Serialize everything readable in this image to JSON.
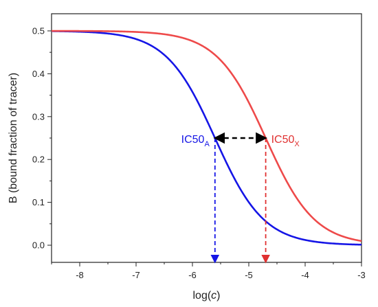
{
  "chart_data": {
    "type": "line",
    "xlabel_prefix": "log(",
    "xlabel_var": "c",
    "xlabel_suffix": ")",
    "ylabel": "B (bound fraction of tracer)",
    "xlim": [
      -8.5,
      -3
    ],
    "ylim": [
      -0.04,
      0.54
    ],
    "x_ticks": [
      -8,
      -7,
      -6,
      -5,
      -4,
      -3
    ],
    "y_ticks": [
      0.0,
      0.1,
      0.2,
      0.3,
      0.4,
      0.5
    ],
    "y_tick_labels": [
      "0.0",
      "0.1",
      "0.2",
      "0.3",
      "0.4",
      "0.5"
    ],
    "grid": false,
    "series": [
      {
        "color": "#1515e6",
        "top": 0.5,
        "ic50_log": -5.6
      },
      {
        "color": "#ee4a4a",
        "top": 0.5,
        "ic50_log": -4.7
      }
    ],
    "annotations": [
      {
        "main": "IC50",
        "sub": "A",
        "color": "#1515e6",
        "x": -5.6,
        "y": 0.25
      },
      {
        "main": "IC50",
        "sub": "X",
        "color": "#e03030",
        "x": -4.7,
        "y": 0.25
      }
    ],
    "double_arrow": {
      "from_x": -5.6,
      "to_x": -4.7,
      "y": 0.25,
      "color": "#000000"
    },
    "drop_lines": [
      {
        "x": -5.6,
        "from_y": 0.25,
        "color": "#1515e6"
      },
      {
        "x": -4.7,
        "from_y": 0.25,
        "color": "#e03030"
      }
    ]
  }
}
